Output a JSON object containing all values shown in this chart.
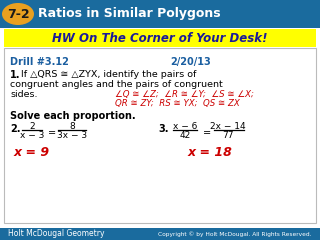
{
  "title_bg": "#1A6B9E",
  "title_label": "7-2",
  "title_label_ellipse_color": "#E8A020",
  "title_label_text_color": "#1A1A1A",
  "title_text": "Ratios in Similar Polygons",
  "title_text_color": "#FFFFFF",
  "hw_text": "HW On The Corner of Your Desk!",
  "hw_bg": "#FFFF00",
  "hw_text_color": "#1A1A99",
  "drill_left": "Drill #3.12",
  "drill_right": "2/20/13",
  "drill_color": "#1A5EA0",
  "q1_bold": "1.",
  "q1_intro": " If △QRS ≅ △ZYX, identify the pairs of",
  "q1_line2": "congruent angles and the pairs of congruent",
  "q1_line3": "sides.",
  "q1_ans1": "∠Q ≅ ∠Z;  ∠R ≅ ∠Y;  ∠S ≅ ∠X;",
  "q1_ans2": "QR ≅ ZY;  RS ≅ YX;  QS ≅ ZX",
  "ans_color": "#CC0000",
  "solve_text": "Solve each proportion.",
  "q2_num": "2",
  "q2_den": "x − 3",
  "q2_num2": "8",
  "q2_den2": "3x − 3",
  "q2_ans": "x = 9",
  "q3_num": "x − 6",
  "q3_den": "42",
  "q3_num2": "2x − 14",
  "q3_den2": "77",
  "q3_ans": "x = 18",
  "footer_left": "Holt McDougal Geometry",
  "footer_right": "Copyright © by Holt McDougal. All Rights Reserved.",
  "footer_bg": "#1A6B9E",
  "footer_color": "#FFFFFF",
  "white": "#FFFFFF",
  "content_bg": "#F8F8F8",
  "border_color": "#BBBBBB",
  "black": "#000000"
}
